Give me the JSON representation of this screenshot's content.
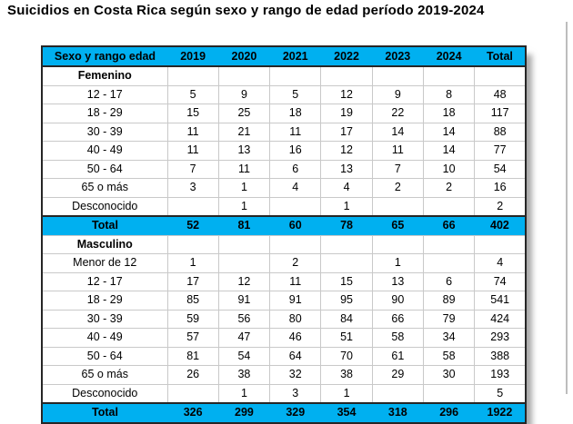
{
  "title": "Suicidios en Costa Rica según sexo y rango de edad período 2019-2024",
  "colors": {
    "accent_cyan": "#00b0f0",
    "grid_line": "#c9c9c9",
    "dark_border": "#262626",
    "page_border_line": "#bdbdbd",
    "text": "#000000",
    "background": "#ffffff"
  },
  "table": {
    "columns": [
      "Sexo y rango edad",
      "2019",
      "2020",
      "2021",
      "2022",
      "2023",
      "2024",
      "Total"
    ],
    "sections": [
      {
        "name": "Femenino",
        "rows": [
          {
            "label": "12 - 17",
            "values": [
              "5",
              "9",
              "5",
              "12",
              "9",
              "8",
              "48"
            ]
          },
          {
            "label": "18 - 29",
            "values": [
              "15",
              "25",
              "18",
              "19",
              "22",
              "18",
              "117"
            ]
          },
          {
            "label": "30 - 39",
            "values": [
              "11",
              "21",
              "11",
              "17",
              "14",
              "14",
              "88"
            ]
          },
          {
            "label": "40 - 49",
            "values": [
              "11",
              "13",
              "16",
              "12",
              "11",
              "14",
              "77"
            ]
          },
          {
            "label": "50 - 64",
            "values": [
              "7",
              "11",
              "6",
              "13",
              "7",
              "10",
              "54"
            ]
          },
          {
            "label": "65 o más",
            "values": [
              "3",
              "1",
              "4",
              "4",
              "2",
              "2",
              "16"
            ]
          },
          {
            "label": "Desconocido",
            "values": [
              "",
              "1",
              "",
              "1",
              "",
              "",
              "2"
            ]
          }
        ],
        "total": {
          "label": "Total",
          "values": [
            "52",
            "81",
            "60",
            "78",
            "65",
            "66",
            "402"
          ]
        }
      },
      {
        "name": "Masculino",
        "rows": [
          {
            "label": "Menor de 12",
            "values": [
              "1",
              "",
              "2",
              "",
              "1",
              "",
              "4"
            ]
          },
          {
            "label": "12 - 17",
            "values": [
              "17",
              "12",
              "11",
              "15",
              "13",
              "6",
              "74"
            ]
          },
          {
            "label": "18 - 29",
            "values": [
              "85",
              "91",
              "91",
              "95",
              "90",
              "89",
              "541"
            ]
          },
          {
            "label": "30 - 39",
            "values": [
              "59",
              "56",
              "80",
              "84",
              "66",
              "79",
              "424"
            ]
          },
          {
            "label": "40 - 49",
            "values": [
              "57",
              "47",
              "46",
              "51",
              "58",
              "34",
              "293"
            ]
          },
          {
            "label": "50 - 64",
            "values": [
              "81",
              "54",
              "64",
              "70",
              "61",
              "58",
              "388"
            ]
          },
          {
            "label": "65 o más",
            "values": [
              "26",
              "38",
              "32",
              "38",
              "29",
              "30",
              "193"
            ]
          },
          {
            "label": "Desconocido",
            "values": [
              "",
              "1",
              "3",
              "1",
              "",
              "",
              "5"
            ]
          }
        ],
        "total": {
          "label": "Total",
          "values": [
            "326",
            "299",
            "329",
            "354",
            "318",
            "296",
            "1922"
          ]
        }
      }
    ]
  }
}
